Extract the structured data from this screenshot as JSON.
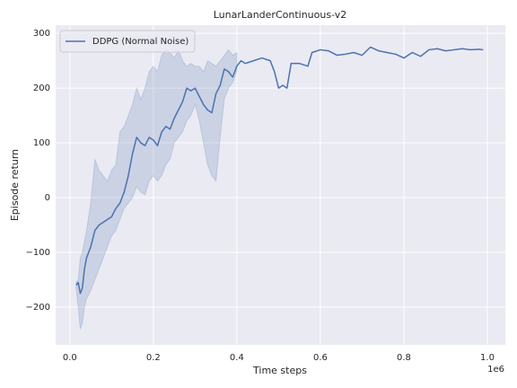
{
  "chart_data": {
    "type": "line",
    "title": "LunarLanderContinuous-v2",
    "xlabel": "Time steps",
    "ylabel": "Episode return",
    "x_offset_label": "1e6",
    "xlim": [
      -0.034,
      1.043
    ],
    "ylim": [
      -269,
      315
    ],
    "xticks": [
      {
        "value": 0,
        "label": "0.0"
      },
      0.2,
      0.4,
      0.6,
      0.8,
      {
        "value": 1,
        "label": "1.0"
      }
    ],
    "yticks": [
      {
        "value": -200,
        "label": "−200"
      },
      {
        "value": -100,
        "label": "−100"
      },
      0,
      100,
      200,
      300
    ],
    "grid": true,
    "legend": "upper left",
    "series": [
      {
        "name": "DDPG (Normal Noise)",
        "color": "#4c72b0",
        "x": [
          0.015,
          0.02,
          0.025,
          0.03,
          0.035,
          0.04,
          0.05,
          0.06,
          0.07,
          0.08,
          0.09,
          0.1,
          0.11,
          0.12,
          0.13,
          0.14,
          0.15,
          0.16,
          0.17,
          0.18,
          0.19,
          0.2,
          0.21,
          0.22,
          0.23,
          0.24,
          0.25,
          0.26,
          0.27,
          0.28,
          0.29,
          0.3,
          0.31,
          0.32,
          0.33,
          0.34,
          0.35,
          0.36,
          0.37,
          0.38,
          0.39,
          0.4,
          0.41,
          0.42,
          0.44,
          0.46,
          0.48,
          0.49,
          0.5,
          0.51,
          0.52,
          0.53,
          0.55,
          0.57,
          0.58,
          0.6,
          0.62,
          0.64,
          0.66,
          0.68,
          0.7,
          0.72,
          0.74,
          0.76,
          0.78,
          0.8,
          0.82,
          0.84,
          0.86,
          0.88,
          0.9,
          0.92,
          0.94,
          0.96,
          0.98,
          0.99
        ],
        "values": [
          -160,
          -155,
          -175,
          -165,
          -130,
          -110,
          -90,
          -60,
          -50,
          -45,
          -40,
          -35,
          -20,
          -10,
          10,
          40,
          80,
          110,
          100,
          95,
          110,
          105,
          95,
          120,
          130,
          125,
          145,
          160,
          175,
          200,
          195,
          200,
          185,
          170,
          160,
          155,
          190,
          205,
          235,
          230,
          220,
          240,
          250,
          245,
          250,
          255,
          250,
          230,
          200,
          205,
          200,
          245,
          245,
          240,
          265,
          270,
          268,
          260,
          262,
          265,
          260,
          275,
          268,
          265,
          262,
          255,
          265,
          258,
          270,
          272,
          268,
          270,
          272,
          270,
          271,
          270
        ]
      }
    ],
    "band": {
      "color": "#4c72b0",
      "x": [
        0.015,
        0.02,
        0.025,
        0.03,
        0.035,
        0.04,
        0.05,
        0.06,
        0.07,
        0.08,
        0.09,
        0.1,
        0.11,
        0.12,
        0.13,
        0.14,
        0.15,
        0.16,
        0.17,
        0.18,
        0.19,
        0.2,
        0.21,
        0.22,
        0.23,
        0.24,
        0.25,
        0.26,
        0.27,
        0.28,
        0.29,
        0.3,
        0.31,
        0.32,
        0.33,
        0.34,
        0.35,
        0.36,
        0.37,
        0.38,
        0.39,
        0.4
      ],
      "lower": [
        -165,
        -200,
        -240,
        -230,
        -200,
        -185,
        -170,
        -150,
        -130,
        -110,
        -90,
        -70,
        -60,
        -40,
        -20,
        -10,
        0,
        20,
        10,
        5,
        30,
        40,
        30,
        40,
        60,
        70,
        100,
        110,
        120,
        140,
        150,
        170,
        140,
        100,
        60,
        40,
        30,
        110,
        180,
        200,
        210,
        230
      ],
      "upper": [
        -155,
        -150,
        -110,
        -100,
        -80,
        -60,
        -10,
        70,
        50,
        40,
        30,
        50,
        60,
        120,
        130,
        150,
        170,
        200,
        180,
        200,
        230,
        240,
        230,
        260,
        270,
        265,
        255,
        270,
        250,
        240,
        245,
        240,
        240,
        230,
        250,
        245,
        240,
        250,
        260,
        270,
        260,
        265
      ]
    }
  }
}
